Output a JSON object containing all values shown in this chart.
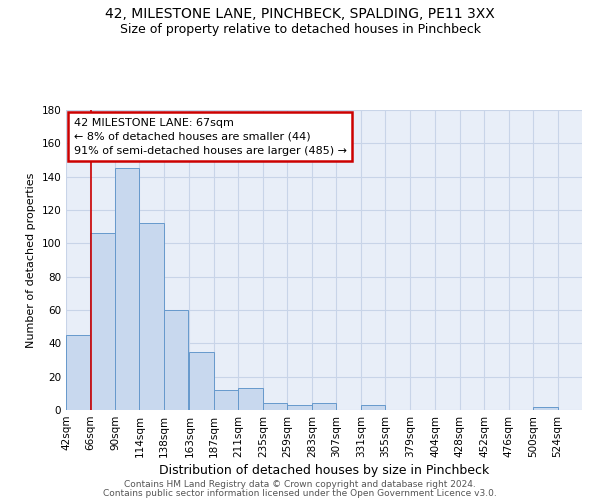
{
  "title1": "42, MILESTONE LANE, PINCHBECK, SPALDING, PE11 3XX",
  "title2": "Size of property relative to detached houses in Pinchbeck",
  "xlabel": "Distribution of detached houses by size in Pinchbeck",
  "ylabel": "Number of detached properties",
  "bar_color": "#c8d8ee",
  "bar_edge_color": "#6699cc",
  "bins_left": [
    42,
    66,
    90,
    114,
    138,
    163,
    187,
    211,
    235,
    259,
    283,
    307,
    331,
    355,
    379,
    404,
    428,
    452,
    476,
    500,
    524
  ],
  "bin_width": 24,
  "heights": [
    45,
    106,
    145,
    112,
    60,
    35,
    12,
    13,
    4,
    3,
    4,
    0,
    3,
    0,
    0,
    0,
    0,
    0,
    0,
    2,
    0
  ],
  "tick_labels": [
    "42sqm",
    "66sqm",
    "90sqm",
    "114sqm",
    "138sqm",
    "163sqm",
    "187sqm",
    "211sqm",
    "235sqm",
    "259sqm",
    "283sqm",
    "307sqm",
    "331sqm",
    "355sqm",
    "379sqm",
    "404sqm",
    "428sqm",
    "452sqm",
    "476sqm",
    "500sqm",
    "524sqm"
  ],
  "ylim": [
    0,
    180
  ],
  "yticks": [
    0,
    20,
    40,
    60,
    80,
    100,
    120,
    140,
    160,
    180
  ],
  "red_line_x": 67,
  "annotation_lines": [
    "42 MILESTONE LANE: 67sqm",
    "← 8% of detached houses are smaller (44)",
    "91% of semi-detached houses are larger (485) →"
  ],
  "annotation_box_color": "white",
  "annotation_box_edge_color": "#cc0000",
  "red_line_color": "#cc0000",
  "grid_color": "#c8d4e8",
  "background_color": "#e8eef8",
  "footer1": "Contains HM Land Registry data © Crown copyright and database right 2024.",
  "footer2": "Contains public sector information licensed under the Open Government Licence v3.0.",
  "title1_fontsize": 10,
  "title2_fontsize": 9,
  "xlabel_fontsize": 9,
  "ylabel_fontsize": 8,
  "tick_fontsize": 7.5,
  "annot_fontsize": 8,
  "footer_fontsize": 6.5
}
